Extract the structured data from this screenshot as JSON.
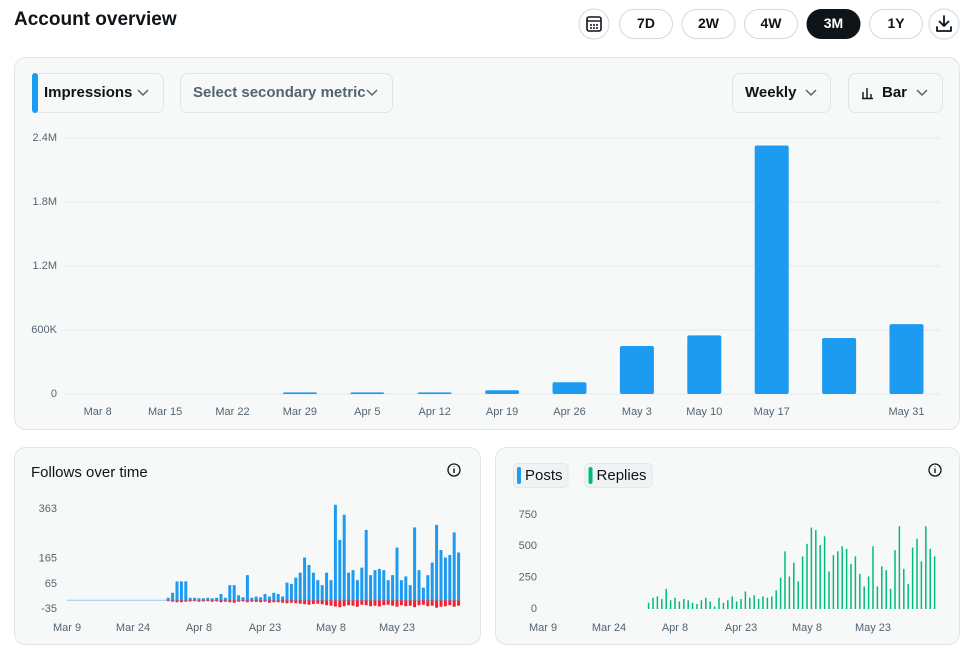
{
  "header": {
    "title": "Account overview",
    "ranges": [
      "7D",
      "2W",
      "4W",
      "3M",
      "1Y"
    ],
    "active_range": "3M"
  },
  "controls": {
    "primary_metric": "Impressions",
    "secondary_metric": "Select secondary metric",
    "interval": "Weekly",
    "chart_style": "Bar"
  },
  "chart_data": [
    {
      "type": "bar",
      "categories": [
        "Mar 8",
        "Mar 15",
        "Mar 22",
        "Mar 29",
        "Apr 5",
        "Apr 12",
        "Apr 19",
        "Apr 26",
        "May 3",
        "May 10",
        "May 17",
        null,
        "May 31"
      ],
      "values": [
        0,
        0,
        0,
        15000,
        15000,
        15000,
        35000,
        110000,
        450000,
        550000,
        2330000,
        525000,
        655000
      ],
      "color": "#1d9bf0",
      "ylim": [
        0,
        2400000
      ],
      "yticks": [
        0,
        {
          "value": 600000,
          "label": "600K"
        },
        {
          "value": 1200000,
          "label": "1.2M"
        },
        {
          "value": 1800000,
          "label": "1.8M"
        },
        {
          "value": 2400000,
          "label": "2.4M"
        }
      ],
      "grid": true
    },
    {
      "type": "bar",
      "title": "Follows over time",
      "x": [
        "Mar 9",
        null,
        null,
        null,
        null,
        null,
        null,
        null,
        null,
        null,
        null,
        null,
        null,
        null,
        null,
        "Mar 24",
        null,
        null,
        null,
        null,
        null,
        null,
        null,
        null,
        null,
        null,
        null,
        null,
        null,
        null,
        "Apr 8",
        null,
        null,
        null,
        null,
        null,
        null,
        null,
        null,
        null,
        null,
        null,
        null,
        null,
        null,
        "Apr 23",
        null,
        null,
        null,
        null,
        null,
        null,
        null,
        null,
        null,
        null,
        null,
        null,
        null,
        null,
        "May 8",
        null,
        null,
        null,
        null,
        null,
        null,
        null,
        null,
        null,
        null,
        null,
        null,
        null,
        null,
        "May 23",
        null,
        null,
        null,
        null,
        null,
        null,
        null,
        null,
        null,
        null,
        null,
        null,
        null,
        null
      ],
      "series": [
        {
          "color": "#1d9bf0",
          "values": [
            0,
            0,
            0,
            0,
            0,
            0,
            0,
            0,
            0,
            0,
            0,
            0,
            0,
            0,
            0,
            0,
            0,
            0,
            0,
            0,
            0,
            0,
            0,
            10,
            30,
            75,
            75,
            75,
            10,
            10,
            8,
            8,
            10,
            8,
            10,
            25,
            10,
            60,
            60,
            20,
            12,
            100,
            10,
            15,
            12,
            25,
            15,
            30,
            25,
            15,
            70,
            65,
            90,
            110,
            170,
            140,
            110,
            80,
            60,
            110,
            80,
            380,
            240,
            340,
            110,
            120,
            80,
            130,
            280,
            100,
            120,
            125,
            120,
            80,
            100,
            210,
            80,
            95,
            60,
            290,
            120,
            50,
            100,
            150,
            300,
            200,
            170,
            180,
            270,
            190
          ]
        },
        {
          "color": "#f4212e",
          "values": [
            0,
            0,
            0,
            0,
            0,
            0,
            0,
            0,
            0,
            0,
            0,
            0,
            0,
            0,
            0,
            0,
            0,
            0,
            0,
            0,
            0,
            0,
            0,
            -4,
            -6,
            -8,
            -8,
            -6,
            -5,
            -4,
            -6,
            -5,
            -4,
            -6,
            -5,
            -8,
            -6,
            -8,
            -10,
            -6,
            -5,
            -8,
            -6,
            -7,
            -8,
            -6,
            -10,
            -8,
            -8,
            -10,
            -12,
            -10,
            -12,
            -14,
            -16,
            -18,
            -15,
            -14,
            -16,
            -20,
            -22,
            -25,
            -28,
            -24,
            -20,
            -22,
            -26,
            -18,
            -20,
            -24,
            -22,
            -25,
            -20,
            -18,
            -22,
            -26,
            -20,
            -24,
            -22,
            -28,
            -20,
            -18,
            -24,
            -22,
            -30,
            -26,
            -24,
            -20,
            -26,
            -22
          ]
        }
      ],
      "ylim": [
        -40,
        400
      ],
      "yticks": [
        -35,
        65,
        165,
        363
      ],
      "grid": false
    },
    {
      "type": "bar",
      "x": [
        "Mar 9",
        null,
        null,
        null,
        null,
        null,
        null,
        null,
        null,
        null,
        null,
        null,
        null,
        null,
        null,
        "Mar 24",
        null,
        null,
        null,
        null,
        null,
        null,
        null,
        null,
        null,
        null,
        null,
        null,
        null,
        null,
        "Apr 8",
        null,
        null,
        null,
        null,
        null,
        null,
        null,
        null,
        null,
        null,
        null,
        null,
        null,
        null,
        "Apr 23",
        null,
        null,
        null,
        null,
        null,
        null,
        null,
        null,
        null,
        null,
        null,
        null,
        null,
        null,
        "May 8",
        null,
        null,
        null,
        null,
        null,
        null,
        null,
        null,
        null,
        null,
        null,
        null,
        null,
        null,
        "May 23",
        null,
        null,
        null,
        null,
        null,
        null,
        null,
        null,
        null,
        null,
        null,
        null,
        null,
        null
      ],
      "series": [
        {
          "name": "Posts",
          "color": "#1d9bf0",
          "values": [
            0,
            0,
            0,
            0,
            0,
            0,
            0,
            0,
            0,
            0,
            0,
            0,
            0,
            0,
            0,
            0,
            0,
            0,
            0,
            0,
            0,
            0,
            0,
            0,
            0,
            0,
            0,
            0,
            0,
            0,
            0,
            0,
            0,
            0,
            0,
            0,
            0,
            0,
            0,
            0,
            0,
            0,
            0,
            0,
            0,
            0,
            0,
            0,
            0,
            0,
            0,
            0,
            0,
            0,
            0,
            0,
            0,
            0,
            0,
            0,
            0,
            0,
            0,
            0,
            0,
            0,
            0,
            0,
            0,
            0,
            0,
            0,
            0,
            0,
            0,
            0,
            0,
            0,
            0,
            0,
            0,
            0,
            0,
            0,
            0,
            0,
            0,
            0,
            0,
            0
          ]
        },
        {
          "name": "Replies",
          "color": "#00ba7c",
          "values": [
            0,
            0,
            0,
            0,
            0,
            0,
            0,
            0,
            0,
            0,
            0,
            0,
            0,
            0,
            0,
            0,
            0,
            0,
            0,
            0,
            0,
            0,
            0,
            0,
            50,
            90,
            100,
            80,
            160,
            70,
            90,
            60,
            80,
            70,
            50,
            40,
            70,
            90,
            60,
            20,
            90,
            50,
            70,
            100,
            60,
            80,
            140,
            90,
            110,
            80,
            100,
            90,
            100,
            150,
            250,
            460,
            260,
            370,
            220,
            420,
            520,
            650,
            630,
            510,
            580,
            300,
            430,
            460,
            500,
            480,
            360,
            420,
            280,
            180,
            260,
            500,
            180,
            340,
            310,
            160,
            470,
            660,
            320,
            200,
            490,
            560,
            380,
            660,
            480,
            420
          ]
        }
      ],
      "ylim": [
        0,
        750
      ],
      "yticks": [
        0,
        250,
        500,
        750
      ],
      "grid": false
    }
  ]
}
